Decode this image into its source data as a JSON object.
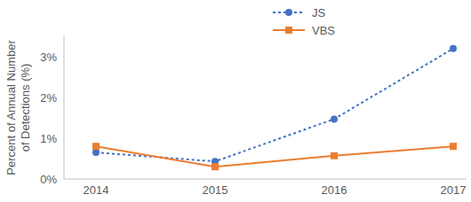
{
  "chart_data": {
    "type": "line",
    "y_label": "Percent of Annual Number of Detections (%)",
    "categories": [
      "2014",
      "2015",
      "2016",
      "2017"
    ],
    "series": [
      {
        "name": "JS",
        "color": "#4472c4",
        "values": [
          0.65,
          0.43,
          1.47,
          3.2
        ],
        "marker": "circle",
        "line_style": "dashed"
      },
      {
        "name": "VBS",
        "color": "#ed7d31",
        "values": [
          0.8,
          0.3,
          0.57,
          0.8
        ],
        "marker": "square",
        "line_style": "solid"
      }
    ],
    "ylim": [
      0,
      3.5
    ],
    "yticks": [
      {
        "value": 0,
        "label": "0%"
      },
      {
        "value": 1,
        "label": "1%"
      },
      {
        "value": 2,
        "label": "2%"
      },
      {
        "value": 3,
        "label": "3%"
      }
    ],
    "grid": false,
    "legend": "top"
  }
}
